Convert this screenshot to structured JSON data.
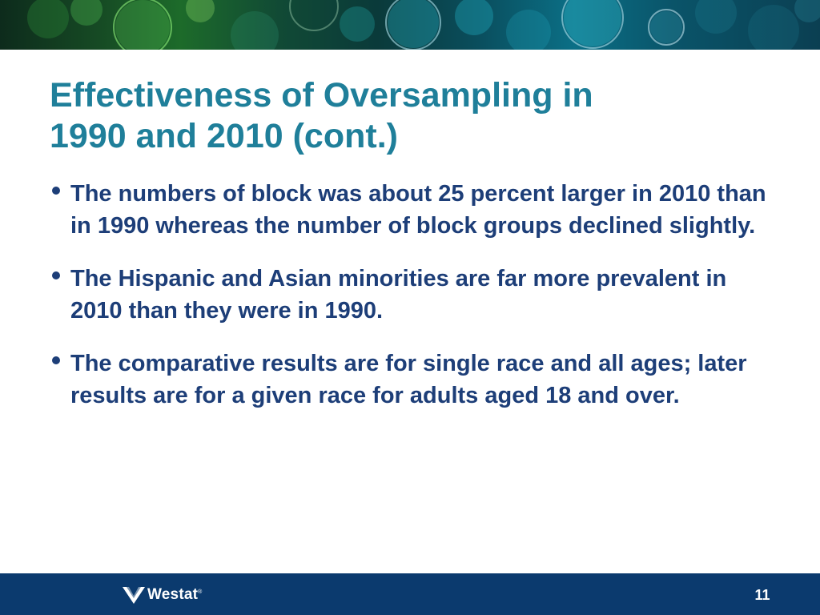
{
  "slide": {
    "title_line1": "Effectiveness of Oversampling in",
    "title_line2": "1990 and 2010 (cont.)",
    "bullets": [
      "The numbers of block was about 25 percent larger in 2010 than in 1990 whereas the number of block groups declined slightly.",
      "The Hispanic and Asian minorities are far more prevalent in 2010 than they were in 1990.",
      "The comparative results are for single race and all ages; later results are for a given race for adults aged 18 and over."
    ]
  },
  "footer": {
    "logo_text": "Westat",
    "logo_trademark": "®",
    "page_number": "11"
  },
  "colors": {
    "title": "#1f7f9a",
    "body_text": "#1d3e78",
    "footer_bar": "#0b3a6e"
  }
}
